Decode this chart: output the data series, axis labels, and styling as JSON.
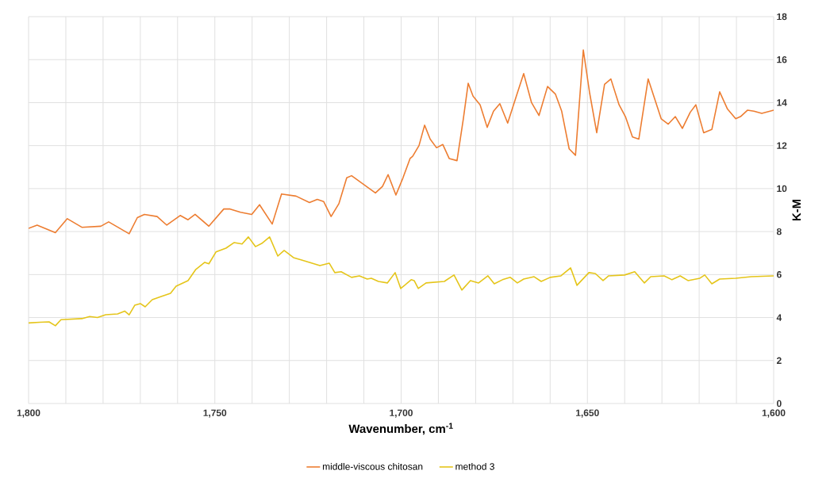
{
  "chart_data": {
    "type": "line",
    "xlabel": "Wavenumber, cm$^{-1}$",
    "ylabel": "K-M",
    "xlim": [
      1800,
      1600
    ],
    "ylim": [
      0,
      18
    ],
    "xticks": [
      {
        "value": 1800,
        "label": "1,800"
      },
      {
        "value": 1790,
        "label": null
      },
      {
        "value": 1780,
        "label": null
      },
      {
        "value": 1770,
        "label": null
      },
      {
        "value": 1760,
        "label": null
      },
      {
        "value": 1750,
        "label": "1,750"
      },
      {
        "value": 1740,
        "label": null
      },
      {
        "value": 1730,
        "label": null
      },
      {
        "value": 1720,
        "label": null
      },
      {
        "value": 1710,
        "label": null
      },
      {
        "value": 1700,
        "label": "1,700"
      },
      {
        "value": 1690,
        "label": null
      },
      {
        "value": 1680,
        "label": null
      },
      {
        "value": 1670,
        "label": null
      },
      {
        "value": 1660,
        "label": null
      },
      {
        "value": 1650,
        "label": "1,650"
      },
      {
        "value": 1640,
        "label": null
      },
      {
        "value": 1630,
        "label": null
      },
      {
        "value": 1620,
        "label": null
      },
      {
        "value": 1610,
        "label": null
      },
      {
        "value": 1600,
        "label": "1,600"
      }
    ],
    "yticks": [
      0,
      2,
      4,
      6,
      8,
      10,
      12,
      14,
      16,
      18
    ],
    "grid": true,
    "legend": "bottom",
    "line_style": "solid",
    "series": [
      {
        "name": "middle-viscous chitosan",
        "color": "#ed7d31",
        "x": [
          1800,
          1797.7,
          1792.8,
          1789.6,
          1785.7,
          1780.6,
          1778.5,
          1773,
          1770.8,
          1768.9,
          1765.5,
          1762.9,
          1759.3,
          1757.2,
          1755.3,
          1751.6,
          1747.6,
          1745.9,
          1743.1,
          1740.1,
          1738,
          1734.6,
          1732.1,
          1728.2,
          1724.6,
          1722.5,
          1720.8,
          1718.8,
          1716.7,
          1714.6,
          1713.3,
          1706.9,
          1705,
          1703.5,
          1701.4,
          1699.5,
          1697.6,
          1696.9,
          1695.2,
          1693.7,
          1692.2,
          1690.5,
          1688.8,
          1687.1,
          1685,
          1683.3,
          1682,
          1680.7,
          1678.8,
          1676.9,
          1675.2,
          1673.5,
          1671.4,
          1668.8,
          1667.1,
          1665,
          1663,
          1660.7,
          1658.6,
          1656.9,
          1654.9,
          1653.2,
          1651.1,
          1649.4,
          1647.5,
          1645.4,
          1643.7,
          1641.5,
          1639.8,
          1637.9,
          1636.2,
          1633.7,
          1630.2,
          1628.3,
          1626.4,
          1624.5,
          1622.4,
          1620.9,
          1618.8,
          1616.6,
          1614.5,
          1612.4,
          1610.2,
          1608.9,
          1607,
          1605.3,
          1603.2,
          1600
        ],
        "values": [
          8.15,
          8.3,
          7.95,
          8.6,
          8.2,
          8.25,
          8.45,
          7.9,
          8.65,
          8.8,
          8.7,
          8.3,
          8.75,
          8.55,
          8.8,
          8.25,
          9.05,
          9.05,
          8.9,
          8.8,
          9.25,
          8.35,
          9.75,
          9.65,
          9.35,
          9.5,
          9.4,
          8.7,
          9.3,
          10.5,
          10.6,
          9.8,
          10.1,
          10.65,
          9.7,
          10.5,
          11.4,
          11.5,
          12.0,
          12.95,
          12.3,
          11.9,
          12.05,
          11.4,
          11.3,
          13.25,
          14.9,
          14.3,
          13.9,
          12.85,
          13.6,
          13.95,
          13.05,
          14.45,
          15.35,
          14.0,
          13.4,
          14.75,
          14.4,
          13.6,
          11.85,
          11.55,
          16.45,
          14.45,
          12.6,
          14.85,
          15.1,
          13.9,
          13.35,
          12.4,
          12.3,
          15.1,
          13.25,
          13.0,
          13.35,
          12.8,
          13.55,
          13.9,
          12.6,
          12.75,
          14.5,
          13.7,
          13.25,
          13.35,
          13.65,
          13.6,
          13.5,
          13.65
        ]
      },
      {
        "name": "method 3",
        "color": "#e5c51a",
        "x": [
          1800,
          1797,
          1794.5,
          1792.8,
          1791.3,
          1785.7,
          1783.6,
          1781.5,
          1779.3,
          1776.1,
          1774.2,
          1773,
          1771.5,
          1770,
          1768.7,
          1766.8,
          1764.4,
          1761.9,
          1760.4,
          1757.2,
          1755.1,
          1752.7,
          1751.6,
          1749.7,
          1747,
          1744.8,
          1742.7,
          1741,
          1739.1,
          1737.4,
          1735.3,
          1733.1,
          1731.4,
          1728.9,
          1726.7,
          1721.8,
          1719.3,
          1717.8,
          1716.1,
          1713.3,
          1711.2,
          1709.1,
          1708,
          1706.1,
          1703.7,
          1701.6,
          1700.1,
          1697.3,
          1696.5,
          1695.4,
          1693.3,
          1688.4,
          1685.8,
          1683.7,
          1681.4,
          1679.2,
          1676.7,
          1675,
          1672.8,
          1670.7,
          1668.8,
          1667.1,
          1664.3,
          1662.4,
          1660,
          1657.1,
          1654.5,
          1652.8,
          1649.6,
          1647.9,
          1645.8,
          1644.3,
          1640,
          1637.3,
          1634.7,
          1633,
          1629.4,
          1627.3,
          1625.1,
          1623,
          1619.8,
          1618.5,
          1616.6,
          1614.5,
          1610.2,
          1606,
          1600
        ],
        "values": [
          3.75,
          3.78,
          3.8,
          3.62,
          3.9,
          3.95,
          4.05,
          4.0,
          4.13,
          4.17,
          4.3,
          4.13,
          4.57,
          4.65,
          4.5,
          4.83,
          4.98,
          5.13,
          5.46,
          5.72,
          6.24,
          6.57,
          6.5,
          7.05,
          7.23,
          7.49,
          7.42,
          7.75,
          7.3,
          7.45,
          7.75,
          6.86,
          7.12,
          6.79,
          6.68,
          6.42,
          6.53,
          6.09,
          6.13,
          5.87,
          5.94,
          5.79,
          5.83,
          5.68,
          5.61,
          6.09,
          5.35,
          5.76,
          5.72,
          5.35,
          5.61,
          5.68,
          5.98,
          5.28,
          5.72,
          5.61,
          5.94,
          5.57,
          5.76,
          5.87,
          5.61,
          5.79,
          5.9,
          5.68,
          5.87,
          5.94,
          6.31,
          5.5,
          6.09,
          6.05,
          5.72,
          5.94,
          5.98,
          6.13,
          5.61,
          5.9,
          5.94,
          5.76,
          5.94,
          5.72,
          5.83,
          5.98,
          5.57,
          5.79,
          5.83,
          5.9,
          5.94
        ]
      }
    ]
  }
}
